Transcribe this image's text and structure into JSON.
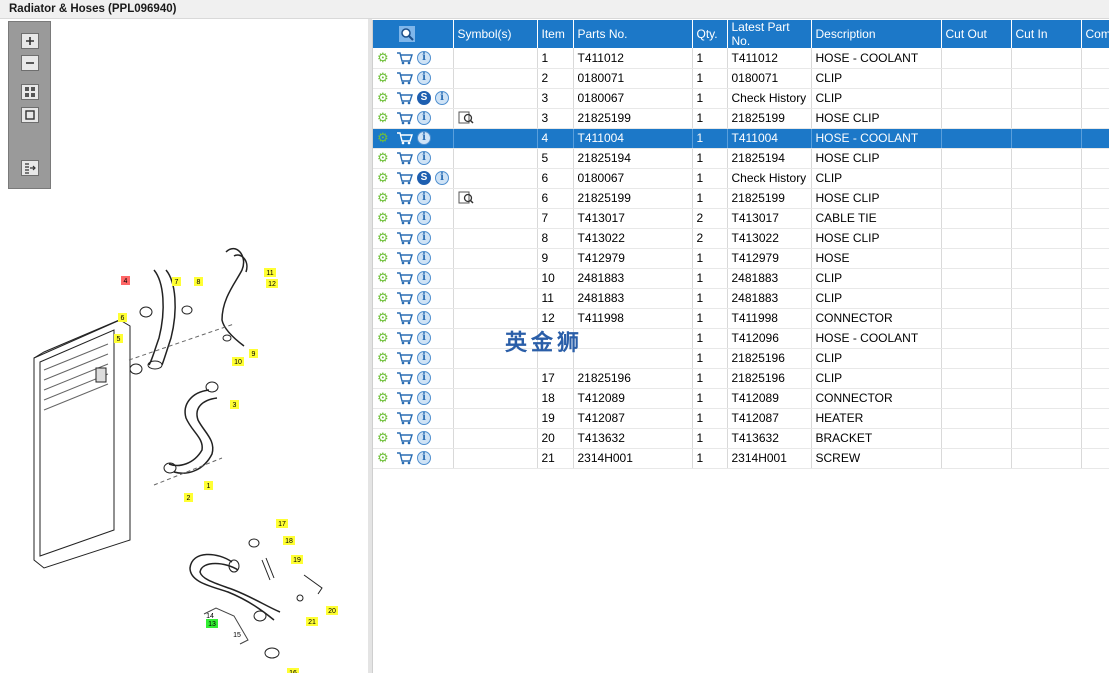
{
  "window": {
    "title": "Radiator & Hoses (PPL096940)"
  },
  "watermark": "英金狮",
  "toolbar": {
    "buttons": [
      "zoom-in",
      "zoom-out",
      "fit-all",
      "fit-window",
      "export"
    ]
  },
  "callouts": [
    "1",
    "2",
    "3",
    "4",
    "5",
    "6",
    "7",
    "8",
    "9",
    "10",
    "11",
    "12",
    "13",
    "14",
    "15",
    "16",
    "17",
    "18",
    "19",
    "20",
    "21"
  ],
  "table": {
    "headers": {
      "icons": "",
      "symbols": "Symbol(s)",
      "item": "Item",
      "parts_no": "Parts No.",
      "qty": "Qty.",
      "latest_part_no": "Latest Part No.",
      "description": "Description",
      "cut_out": "Cut Out",
      "cut_in": "Cut In",
      "comment": "Comment"
    },
    "rows": [
      {
        "item": "1",
        "parts_no": "T411012",
        "qty": "1",
        "latest": "T411012",
        "description": "HOSE - COOLANT",
        "s_icon": false,
        "mag": false,
        "selected": false
      },
      {
        "item": "2",
        "parts_no": "0180071",
        "qty": "1",
        "latest": "0180071",
        "description": "CLIP",
        "s_icon": false,
        "mag": false,
        "selected": false
      },
      {
        "item": "3",
        "parts_no": "0180067",
        "qty": "1",
        "latest": "Check History",
        "description": "CLIP",
        "s_icon": true,
        "mag": false,
        "selected": false
      },
      {
        "item": "3",
        "parts_no": "21825199",
        "qty": "1",
        "latest": "21825199",
        "description": "HOSE CLIP",
        "s_icon": false,
        "mag": true,
        "selected": false
      },
      {
        "item": "4",
        "parts_no": "T411004",
        "qty": "1",
        "latest": "T411004",
        "description": "HOSE - COOLANT",
        "s_icon": false,
        "mag": false,
        "selected": true
      },
      {
        "item": "5",
        "parts_no": "21825194",
        "qty": "1",
        "latest": "21825194",
        "description": "HOSE CLIP",
        "s_icon": false,
        "mag": false,
        "selected": false
      },
      {
        "item": "6",
        "parts_no": "0180067",
        "qty": "1",
        "latest": "Check History",
        "description": "CLIP",
        "s_icon": true,
        "mag": false,
        "selected": false
      },
      {
        "item": "6",
        "parts_no": "21825199",
        "qty": "1",
        "latest": "21825199",
        "description": "HOSE CLIP",
        "s_icon": false,
        "mag": true,
        "selected": false
      },
      {
        "item": "7",
        "parts_no": "T413017",
        "qty": "2",
        "latest": "T413017",
        "description": "CABLE TIE",
        "s_icon": false,
        "mag": false,
        "selected": false
      },
      {
        "item": "8",
        "parts_no": "T413022",
        "qty": "2",
        "latest": "T413022",
        "description": "HOSE CLIP",
        "s_icon": false,
        "mag": false,
        "selected": false
      },
      {
        "item": "9",
        "parts_no": "T412979",
        "qty": "1",
        "latest": "T412979",
        "description": "HOSE",
        "s_icon": false,
        "mag": false,
        "selected": false
      },
      {
        "item": "10",
        "parts_no": "2481883",
        "qty": "1",
        "latest": "2481883",
        "description": "CLIP",
        "s_icon": false,
        "mag": false,
        "selected": false
      },
      {
        "item": "11",
        "parts_no": "2481883",
        "qty": "1",
        "latest": "2481883",
        "description": "CLIP",
        "s_icon": false,
        "mag": false,
        "selected": false
      },
      {
        "item": "12",
        "parts_no": "T411998",
        "qty": "1",
        "latest": "T411998",
        "description": "CONNECTOR",
        "s_icon": false,
        "mag": false,
        "selected": false
      },
      {
        "item": "",
        "parts_no": "",
        "qty": "1",
        "latest": "T412096",
        "description": "HOSE - COOLANT",
        "s_icon": false,
        "mag": false,
        "selected": false
      },
      {
        "item": "",
        "parts_no": "",
        "qty": "1",
        "latest": "21825196",
        "description": "CLIP",
        "s_icon": false,
        "mag": false,
        "selected": false
      },
      {
        "item": "17",
        "parts_no": "21825196",
        "qty": "1",
        "latest": "21825196",
        "description": "CLIP",
        "s_icon": false,
        "mag": false,
        "selected": false
      },
      {
        "item": "18",
        "parts_no": "T412089",
        "qty": "1",
        "latest": "T412089",
        "description": "CONNECTOR",
        "s_icon": false,
        "mag": false,
        "selected": false
      },
      {
        "item": "19",
        "parts_no": "T412087",
        "qty": "1",
        "latest": "T412087",
        "description": "HEATER",
        "s_icon": false,
        "mag": false,
        "selected": false
      },
      {
        "item": "20",
        "parts_no": "T413632",
        "qty": "1",
        "latest": "T413632",
        "description": "BRACKET",
        "s_icon": false,
        "mag": false,
        "selected": false
      },
      {
        "item": "21",
        "parts_no": "2314H001",
        "qty": "1",
        "latest": "2314H001",
        "description": "SCREW",
        "s_icon": false,
        "mag": false,
        "selected": false
      }
    ]
  },
  "colors": {
    "header_bg": "#1c78c8",
    "selected_bg": "#1c78c8",
    "gear": "#6fbf3a",
    "callout_yellow": "#ffff33",
    "callout_red": "#ff6666",
    "callout_green": "#33ee33"
  }
}
